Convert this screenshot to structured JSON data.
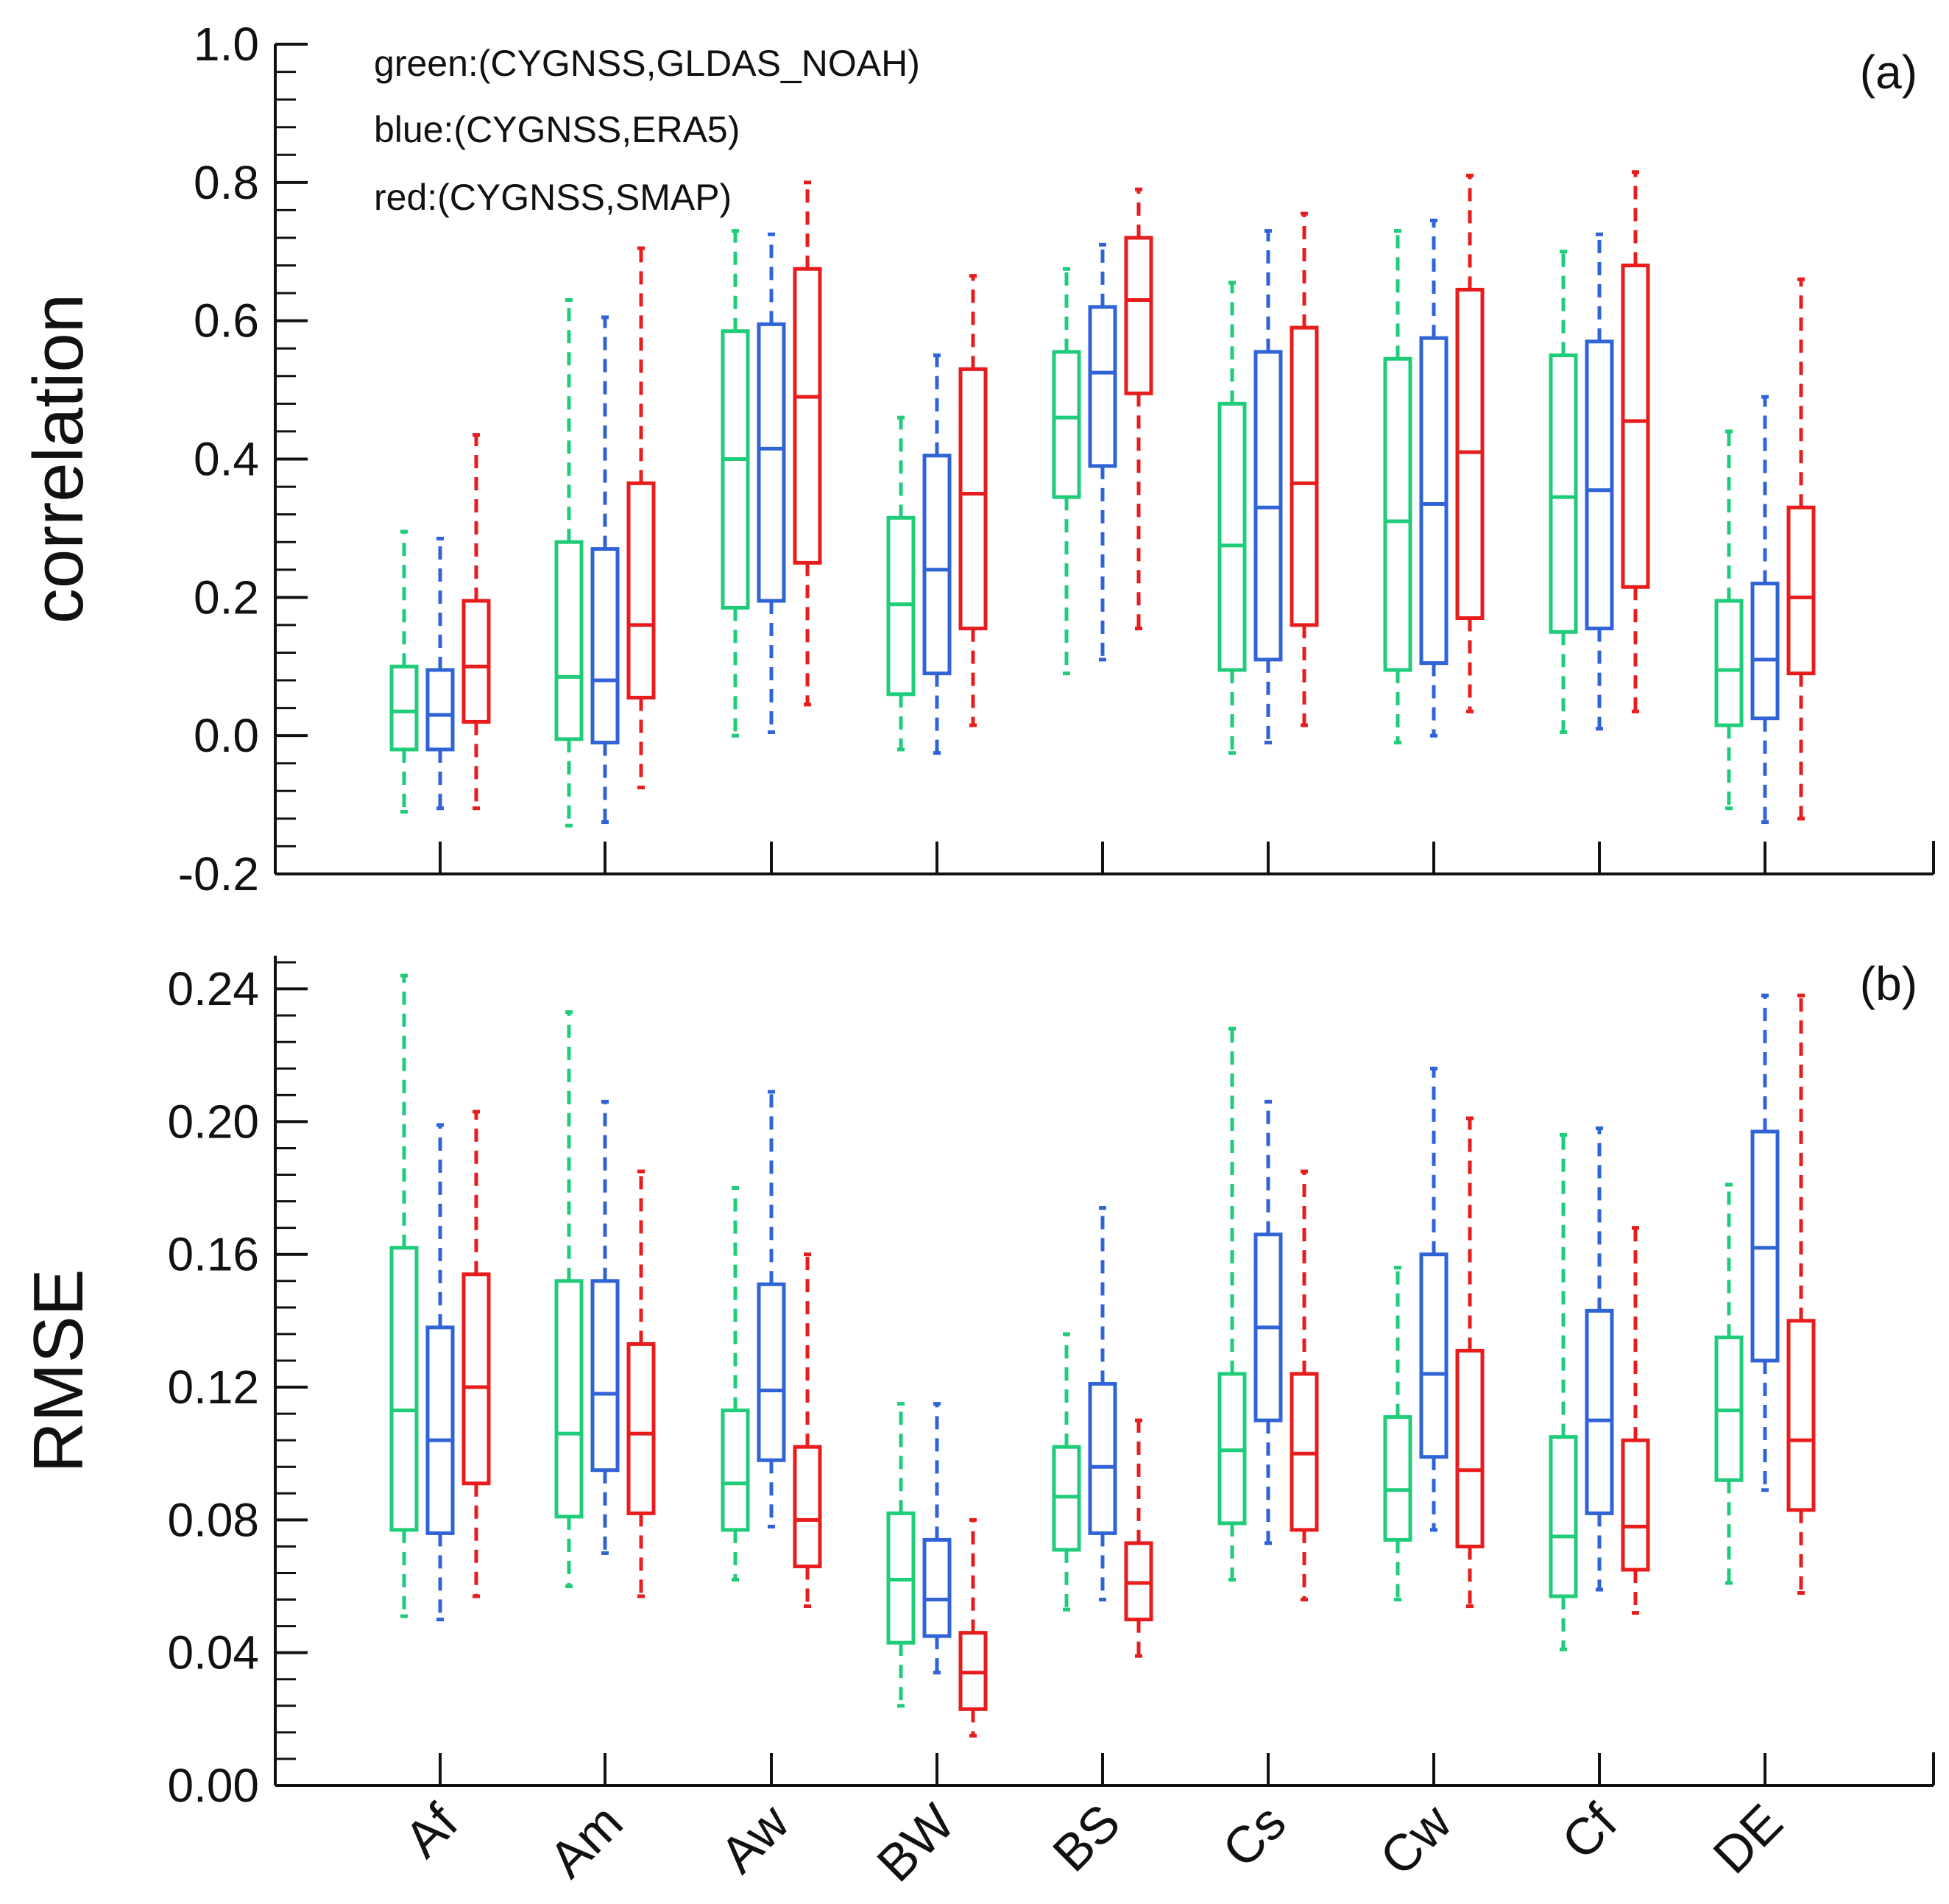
{
  "chart_data": [
    {
      "type": "box",
      "panel_label": "(a)",
      "ylabel": "correlation",
      "ylim": [
        -0.2,
        1.0
      ],
      "yticks": [
        -0.2,
        0.0,
        0.2,
        0.4,
        0.6,
        0.8,
        1.0
      ],
      "ytick_labels": [
        "-0.2",
        "0.0",
        "0.2",
        "0.4",
        "0.6",
        "0.8",
        "1.0"
      ],
      "legend": [
        "green:(CYGNSS,GLDAS_NOAH)",
        "blue:(CYGNSS,ERA5)",
        "red:(CYGNSS,SMAP)"
      ],
      "legend_position": "top-left",
      "categories": [
        "Af",
        "Am",
        "Aw",
        "BW",
        "BS",
        "Cs",
        "Cw",
        "Cf",
        "DE"
      ],
      "series": [
        {
          "name": "(CYGNSS,GLDAS_NOAH)",
          "color": "#1fcc7a",
          "boxes": [
            {
              "min": -0.11,
              "q1": -0.02,
              "median": 0.035,
              "q3": 0.1,
              "max": 0.295
            },
            {
              "min": -0.13,
              "q1": -0.005,
              "median": 0.085,
              "q3": 0.28,
              "max": 0.63
            },
            {
              "min": 0.0,
              "q1": 0.185,
              "median": 0.4,
              "q3": 0.585,
              "max": 0.73
            },
            {
              "min": -0.02,
              "q1": 0.06,
              "median": 0.19,
              "q3": 0.315,
              "max": 0.46
            },
            {
              "min": 0.09,
              "q1": 0.345,
              "median": 0.46,
              "q3": 0.555,
              "max": 0.675
            },
            {
              "min": -0.025,
              "q1": 0.095,
              "median": 0.275,
              "q3": 0.48,
              "max": 0.655
            },
            {
              "min": -0.01,
              "q1": 0.095,
              "median": 0.31,
              "q3": 0.545,
              "max": 0.73
            },
            {
              "min": 0.005,
              "q1": 0.15,
              "median": 0.345,
              "q3": 0.55,
              "max": 0.7
            },
            {
              "min": -0.105,
              "q1": 0.015,
              "median": 0.095,
              "q3": 0.195,
              "max": 0.44
            }
          ]
        },
        {
          "name": "(CYGNSS,ERA5)",
          "color": "#2f63d6",
          "boxes": [
            {
              "min": -0.105,
              "q1": -0.02,
              "median": 0.03,
              "q3": 0.095,
              "max": 0.285
            },
            {
              "min": -0.125,
              "q1": -0.01,
              "median": 0.08,
              "q3": 0.27,
              "max": 0.605
            },
            {
              "min": 0.005,
              "q1": 0.195,
              "median": 0.415,
              "q3": 0.595,
              "max": 0.725
            },
            {
              "min": -0.025,
              "q1": 0.09,
              "median": 0.24,
              "q3": 0.405,
              "max": 0.55
            },
            {
              "min": 0.11,
              "q1": 0.39,
              "median": 0.525,
              "q3": 0.62,
              "max": 0.71
            },
            {
              "min": -0.01,
              "q1": 0.11,
              "median": 0.33,
              "q3": 0.555,
              "max": 0.73
            },
            {
              "min": 0.0,
              "q1": 0.105,
              "median": 0.335,
              "q3": 0.575,
              "max": 0.745
            },
            {
              "min": 0.01,
              "q1": 0.155,
              "median": 0.355,
              "q3": 0.57,
              "max": 0.725
            },
            {
              "min": -0.125,
              "q1": 0.025,
              "median": 0.11,
              "q3": 0.22,
              "max": 0.49
            }
          ]
        },
        {
          "name": "(CYGNSS,SMAP)",
          "color": "#e81c1c",
          "boxes": [
            {
              "min": -0.105,
              "q1": 0.02,
              "median": 0.1,
              "q3": 0.195,
              "max": 0.435
            },
            {
              "min": -0.075,
              "q1": 0.055,
              "median": 0.16,
              "q3": 0.365,
              "max": 0.705
            },
            {
              "min": 0.045,
              "q1": 0.25,
              "median": 0.49,
              "q3": 0.675,
              "max": 0.8
            },
            {
              "min": 0.015,
              "q1": 0.155,
              "median": 0.35,
              "q3": 0.53,
              "max": 0.665
            },
            {
              "min": 0.155,
              "q1": 0.495,
              "median": 0.63,
              "q3": 0.72,
              "max": 0.79
            },
            {
              "min": 0.015,
              "q1": 0.16,
              "median": 0.365,
              "q3": 0.59,
              "max": 0.755
            },
            {
              "min": 0.035,
              "q1": 0.17,
              "median": 0.41,
              "q3": 0.645,
              "max": 0.81
            },
            {
              "min": 0.035,
              "q1": 0.215,
              "median": 0.455,
              "q3": 0.68,
              "max": 0.815
            },
            {
              "min": -0.12,
              "q1": 0.09,
              "median": 0.2,
              "q3": 0.33,
              "max": 0.66
            }
          ]
        }
      ]
    },
    {
      "type": "box",
      "panel_label": "(b)",
      "ylabel": "RMSE",
      "ylim": [
        0.0,
        0.25
      ],
      "yticks": [
        0.0,
        0.04,
        0.08,
        0.12,
        0.16,
        0.2,
        0.24
      ],
      "ytick_labels": [
        "0.00",
        "0.04",
        "0.08",
        "0.12",
        "0.16",
        "0.20",
        "0.24"
      ],
      "categories": [
        "Af",
        "Am",
        "Aw",
        "BW",
        "BS",
        "Cs",
        "Cw",
        "Cf",
        "DE"
      ],
      "series": [
        {
          "name": "(CYGNSS,GLDAS_NOAH)",
          "color": "#1fcc7a",
          "boxes": [
            {
              "min": 0.051,
              "q1": 0.077,
              "median": 0.113,
              "q3": 0.162,
              "max": 0.244
            },
            {
              "min": 0.06,
              "q1": 0.081,
              "median": 0.106,
              "q3": 0.152,
              "max": 0.233
            },
            {
              "min": 0.062,
              "q1": 0.077,
              "median": 0.091,
              "q3": 0.113,
              "max": 0.18
            },
            {
              "min": 0.024,
              "q1": 0.043,
              "median": 0.062,
              "q3": 0.082,
              "max": 0.115
            },
            {
              "min": 0.053,
              "q1": 0.071,
              "median": 0.087,
              "q3": 0.102,
              "max": 0.136
            },
            {
              "min": 0.062,
              "q1": 0.079,
              "median": 0.101,
              "q3": 0.124,
              "max": 0.228
            },
            {
              "min": 0.056,
              "q1": 0.074,
              "median": 0.089,
              "q3": 0.111,
              "max": 0.156
            },
            {
              "min": 0.041,
              "q1": 0.057,
              "median": 0.075,
              "q3": 0.105,
              "max": 0.196
            },
            {
              "min": 0.061,
              "q1": 0.092,
              "median": 0.113,
              "q3": 0.135,
              "max": 0.181
            }
          ]
        },
        {
          "name": "(CYGNSS,ERA5)",
          "color": "#2f63d6",
          "boxes": [
            {
              "min": 0.05,
              "q1": 0.076,
              "median": 0.104,
              "q3": 0.138,
              "max": 0.199
            },
            {
              "min": 0.07,
              "q1": 0.095,
              "median": 0.118,
              "q3": 0.152,
              "max": 0.206
            },
            {
              "min": 0.078,
              "q1": 0.098,
              "median": 0.119,
              "q3": 0.151,
              "max": 0.209
            },
            {
              "min": 0.034,
              "q1": 0.045,
              "median": 0.056,
              "q3": 0.074,
              "max": 0.115
            },
            {
              "min": 0.056,
              "q1": 0.076,
              "median": 0.096,
              "q3": 0.121,
              "max": 0.174
            },
            {
              "min": 0.073,
              "q1": 0.11,
              "median": 0.138,
              "q3": 0.166,
              "max": 0.206
            },
            {
              "min": 0.077,
              "q1": 0.099,
              "median": 0.124,
              "q3": 0.16,
              "max": 0.216
            },
            {
              "min": 0.059,
              "q1": 0.082,
              "median": 0.11,
              "q3": 0.143,
              "max": 0.198
            },
            {
              "min": 0.089,
              "q1": 0.128,
              "median": 0.162,
              "q3": 0.197,
              "max": 0.238
            }
          ]
        },
        {
          "name": "(CYGNSS,SMAP)",
          "color": "#e81c1c",
          "boxes": [
            {
              "min": 0.057,
              "q1": 0.091,
              "median": 0.12,
              "q3": 0.154,
              "max": 0.203
            },
            {
              "min": 0.057,
              "q1": 0.082,
              "median": 0.106,
              "q3": 0.133,
              "max": 0.185
            },
            {
              "min": 0.054,
              "q1": 0.066,
              "median": 0.08,
              "q3": 0.102,
              "max": 0.16
            },
            {
              "min": 0.015,
              "q1": 0.023,
              "median": 0.034,
              "q3": 0.046,
              "max": 0.08
            },
            {
              "min": 0.039,
              "q1": 0.05,
              "median": 0.061,
              "q3": 0.073,
              "max": 0.11
            },
            {
              "min": 0.056,
              "q1": 0.077,
              "median": 0.1,
              "q3": 0.124,
              "max": 0.185
            },
            {
              "min": 0.054,
              "q1": 0.072,
              "median": 0.095,
              "q3": 0.131,
              "max": 0.201
            },
            {
              "min": 0.052,
              "q1": 0.065,
              "median": 0.078,
              "q3": 0.104,
              "max": 0.168
            },
            {
              "min": 0.058,
              "q1": 0.083,
              "median": 0.104,
              "q3": 0.14,
              "max": 0.238
            }
          ]
        }
      ]
    }
  ]
}
